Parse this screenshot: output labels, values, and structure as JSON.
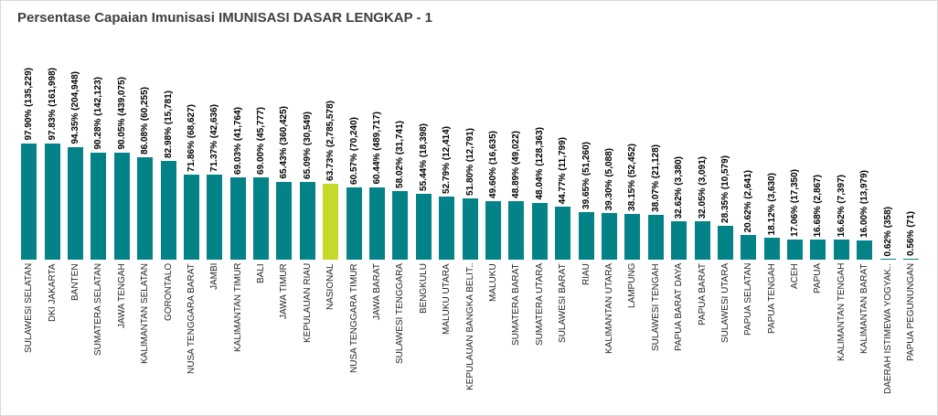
{
  "title": "Persentase Capaian Imunisasi IMUNISASI DASAR LENGKAP - 1",
  "colors": {
    "bar": "#038387",
    "highlight": "#c5d928",
    "title_text": "#3f3f3f",
    "label_text": "#252423",
    "value_label_text": "#000000"
  },
  "chart_data": {
    "type": "bar",
    "title": "Persentase Capaian Imunisasi IMUNISASI DASAR LENGKAP - 1",
    "ylabel": "Persentase Capaian",
    "ylim": [
      0,
      100
    ],
    "grid": false,
    "legend": false,
    "highlight_category": "NASIONAL",
    "highlight_index": 13,
    "categories": [
      "SULAWESI SELATAN",
      "DKI JAKARTA",
      "BANTEN",
      "SUMATERA SELATAN",
      "JAWA TENGAH",
      "KALIMANTAN SELATAN",
      "GORONTALO",
      "NUSA TENGGARA BARAT",
      "JAMBI",
      "KALIMANTAN TIMUR",
      "BALI",
      "JAWA TIMUR",
      "KEPULAUAN RIAU",
      "NASIONAL",
      "NUSA TENGGARA TIMUR",
      "JAWA BARAT",
      "SULAWESI TENGGARA",
      "BENGKULU",
      "MALUKU UTARA",
      "KEPULAUAN BANGKA BELIT..",
      "MALUKU",
      "SUMATERA BARAT",
      "SUMATERA UTARA",
      "SULAWESI BARAT",
      "RIAU",
      "KALIMANTAN UTARA",
      "LAMPUNG",
      "SULAWESI TENGAH",
      "PAPUA BARAT DAYA",
      "PAPUA BARAT",
      "SULAWESI UTARA",
      "PAPUA SELATAN",
      "PAPUA TENGAH",
      "ACEH",
      "PAPUA",
      "KALIMANTAN TENGAH",
      "KALIMANTAN BARAT",
      "DAERAH ISTIMEWA YOGYAK..",
      "PAPUA PEGUNUNGAN"
    ],
    "values": [
      97.9,
      97.83,
      94.35,
      90.28,
      90.05,
      86.08,
      82.98,
      71.86,
      71.37,
      69.03,
      69.0,
      65.43,
      65.09,
      63.73,
      60.57,
      60.44,
      58.02,
      55.44,
      52.79,
      51.8,
      49.6,
      48.89,
      48.04,
      44.77,
      39.65,
      39.3,
      38.15,
      38.07,
      32.62,
      32.05,
      28.35,
      20.62,
      18.12,
      17.06,
      16.68,
      16.62,
      16.0,
      0.62,
      0.56
    ],
    "counts": [
      "135,229",
      "161,998",
      "204,948",
      "142,123",
      "439,075",
      "60,255",
      "15,781",
      "68,627",
      "42,636",
      "41,764",
      "45,777",
      "360,425",
      "30,549",
      "2,785,578",
      "70,240",
      "489,717",
      "31,741",
      "18,398",
      "12,414",
      "12,791",
      "16,635",
      "49,022",
      "128,363",
      "11,799",
      "51,260",
      "5,088",
      "52,452",
      "21,128",
      "3,380",
      "3,091",
      "10,579",
      "2,641",
      "3,630",
      "17,350",
      "2,867",
      "7,397",
      "13,979",
      "358",
      "71"
    ],
    "value_labels": [
      "97.90% (135,229)",
      "97.83% (161,998)",
      "94.35% (204,948)",
      "90.28% (142,123)",
      "90.05% (439,075)",
      "86.08% (60,255)",
      "82.98% (15,781)",
      "71.86% (68,627)",
      "71.37% (42,636)",
      "69.03% (41,764)",
      "69.00% (45,777)",
      "65.43% (360,425)",
      "65.09% (30,549)",
      "63.73% (2,785,578)",
      "60.57% (70,240)",
      "60.44% (489,717)",
      "58.02% (31,741)",
      "55.44% (18,398)",
      "52.79% (12,414)",
      "51.80% (12,791)",
      "49.60% (16,635)",
      "48.89% (49,022)",
      "48.04% (128,363)",
      "44.77% (11,799)",
      "39.65% (51,260)",
      "39.30% (5,088)",
      "38.15% (52,452)",
      "38.07% (21,128)",
      "32.62% (3,380)",
      "32.05% (3,091)",
      "28.35% (10,579)",
      "20.62% (2,641)",
      "18.12% (3,630)",
      "17.06% (17,350)",
      "16.68% (2,867)",
      "16.62% (7,397)",
      "16.00% (13,979)",
      "0.62% (358)",
      "0.56% (71)"
    ]
  }
}
